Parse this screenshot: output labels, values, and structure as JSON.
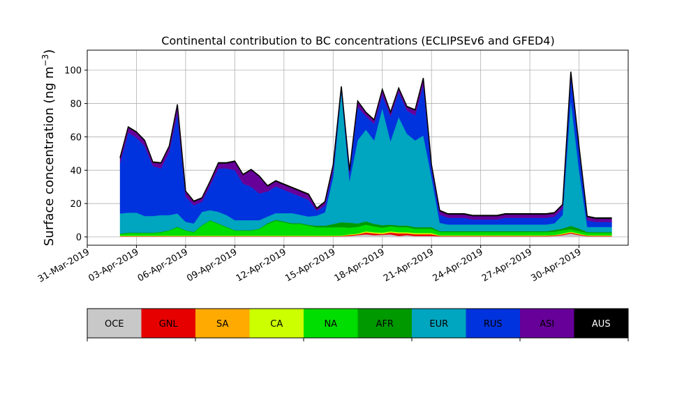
{
  "chart_data": {
    "type": "area",
    "stacked": true,
    "title": "Continental contribution to BC concentrations (ECLIPSEv6 and GFED4)",
    "ylabel_main": "Surface concentration (ng m",
    "ylabel_sup": "−3",
    "ylabel_close": ")",
    "xlabel": "",
    "xlim": [
      "2019-03-31",
      "2019-05-03"
    ],
    "ylim": [
      -5,
      112
    ],
    "grid": true,
    "x_ticks": [
      "31-Mar-2019",
      "03-Apr-2019",
      "06-Apr-2019",
      "09-Apr-2019",
      "12-Apr-2019",
      "15-Apr-2019",
      "18-Apr-2019",
      "21-Apr-2019",
      "24-Apr-2019",
      "27-Apr-2019",
      "30-Apr-2019"
    ],
    "y_ticks": [
      "0",
      "20",
      "40",
      "60",
      "80",
      "100"
    ],
    "y_tick_values": [
      0,
      20,
      40,
      60,
      80,
      100
    ],
    "legend": {
      "placement": "bottom",
      "entries": [
        {
          "name": "OCE",
          "color": "#c8c8c8"
        },
        {
          "name": "GNL",
          "color": "#e60000"
        },
        {
          "name": "SA",
          "color": "#ffaa00"
        },
        {
          "name": "CA",
          "color": "#ccff00"
        },
        {
          "name": "NA",
          "color": "#00dd00"
        },
        {
          "name": "AFR",
          "color": "#009900"
        },
        {
          "name": "EUR",
          "color": "#00a5bf"
        },
        {
          "name": "RUS",
          "color": "#0033dd"
        },
        {
          "name": "ASI",
          "color": "#660099"
        },
        {
          "name": "AUS",
          "color": "#000000"
        }
      ]
    },
    "x": [
      "2019-04-02 00:00",
      "2019-04-02 12:00",
      "2019-04-03 00:00",
      "2019-04-03 12:00",
      "2019-04-04 00:00",
      "2019-04-04 12:00",
      "2019-04-05 00:00",
      "2019-04-05 12:00",
      "2019-04-06 00:00",
      "2019-04-06 12:00",
      "2019-04-07 00:00",
      "2019-04-07 12:00",
      "2019-04-08 00:00",
      "2019-04-08 12:00",
      "2019-04-09 00:00",
      "2019-04-09 12:00",
      "2019-04-10 00:00",
      "2019-04-10 12:00",
      "2019-04-11 00:00",
      "2019-04-11 12:00",
      "2019-04-12 00:00",
      "2019-04-12 12:00",
      "2019-04-13 00:00",
      "2019-04-13 12:00",
      "2019-04-14 00:00",
      "2019-04-14 12:00",
      "2019-04-15 00:00",
      "2019-04-15 12:00",
      "2019-04-16 00:00",
      "2019-04-16 12:00",
      "2019-04-17 00:00",
      "2019-04-17 12:00",
      "2019-04-18 00:00",
      "2019-04-18 12:00",
      "2019-04-19 00:00",
      "2019-04-19 12:00",
      "2019-04-20 00:00",
      "2019-04-20 12:00",
      "2019-04-21 00:00",
      "2019-04-21 12:00",
      "2019-04-22 00:00",
      "2019-04-22 12:00",
      "2019-04-23 00:00",
      "2019-04-23 12:00",
      "2019-04-24 00:00",
      "2019-04-24 12:00",
      "2019-04-25 00:00",
      "2019-04-25 12:00",
      "2019-04-26 00:00",
      "2019-04-26 12:00",
      "2019-04-27 00:00",
      "2019-04-27 12:00",
      "2019-04-28 00:00",
      "2019-04-28 12:00",
      "2019-04-29 00:00",
      "2019-04-29 12:00",
      "2019-04-30 00:00",
      "2019-04-30 12:00",
      "2019-05-01 00:00",
      "2019-05-01 12:00",
      "2019-05-02 00:00"
    ],
    "series": [
      {
        "name": "OCE",
        "values": [
          0.2,
          0.2,
          0.2,
          0.2,
          0.2,
          0.2,
          0.2,
          0.2,
          0.2,
          0.2,
          0.2,
          0.2,
          0.2,
          0.2,
          0.2,
          0.2,
          0.2,
          0.2,
          0.2,
          0.2,
          0.2,
          0.2,
          0.2,
          0.2,
          0.2,
          0.2,
          0.2,
          0.3,
          0.5,
          1.0,
          1.5,
          1.0,
          1.2,
          1.5,
          0.5,
          1.0,
          0.5,
          0.5,
          0.5,
          0.3,
          0.3,
          0.3,
          0.3,
          0.3,
          0.3,
          0.3,
          0.3,
          0.3,
          0.3,
          0.3,
          0.3,
          0.3,
          0.3,
          0.5,
          1.0,
          2.0,
          1.0,
          0.3,
          0.3,
          0.3,
          0.3
        ]
      },
      {
        "name": "GNL",
        "values": [
          0.2,
          0.2,
          0.2,
          0.2,
          0.2,
          0.2,
          0.2,
          0.2,
          0.2,
          0.2,
          0.2,
          0.2,
          0.2,
          0.2,
          0.2,
          0.2,
          0.2,
          0.2,
          0.2,
          0.2,
          0.2,
          0.2,
          0.2,
          0.2,
          0.2,
          0.2,
          0.2,
          0.2,
          0.5,
          0.5,
          1.0,
          1.0,
          0.5,
          1.0,
          1.5,
          1.0,
          1.0,
          1.0,
          1.0,
          0.3,
          0.3,
          0.3,
          0.3,
          0.3,
          0.3,
          0.3,
          0.3,
          0.3,
          0.3,
          0.3,
          0.3,
          0.3,
          0.3,
          0.3,
          0.5,
          0.5,
          0.5,
          0.3,
          0.3,
          0.3,
          0.3
        ]
      },
      {
        "name": "SA",
        "values": [
          0.1,
          0.1,
          0.1,
          0.1,
          0.1,
          0.1,
          0.1,
          0.1,
          0.1,
          0.1,
          0.1,
          0.1,
          0.1,
          0.1,
          0.1,
          0.1,
          0.1,
          0.1,
          0.1,
          0.1,
          0.1,
          0.1,
          0.1,
          0.1,
          0.1,
          0.1,
          0.1,
          0.1,
          0.2,
          0.2,
          0.3,
          0.3,
          0.3,
          0.3,
          0.3,
          0.3,
          0.3,
          0.3,
          0.3,
          0.1,
          0.1,
          0.1,
          0.1,
          0.1,
          0.1,
          0.1,
          0.1,
          0.1,
          0.1,
          0.1,
          0.1,
          0.1,
          0.1,
          0.1,
          0.2,
          0.3,
          0.2,
          0.1,
          0.1,
          0.1,
          0.1
        ]
      },
      {
        "name": "CA",
        "values": [
          0.2,
          0.2,
          0.2,
          0.2,
          0.2,
          0.2,
          0.2,
          0.2,
          0.2,
          0.2,
          0.2,
          0.2,
          0.2,
          0.2,
          0.2,
          0.2,
          0.2,
          0.2,
          0.2,
          0.2,
          0.2,
          0.2,
          0.2,
          0.2,
          0.2,
          0.2,
          0.2,
          0.2,
          0.3,
          0.3,
          0.5,
          0.5,
          0.5,
          0.5,
          0.5,
          0.5,
          0.5,
          0.5,
          0.5,
          0.2,
          0.2,
          0.2,
          0.2,
          0.2,
          0.2,
          0.2,
          0.2,
          0.2,
          0.2,
          0.2,
          0.2,
          0.2,
          0.2,
          0.2,
          0.3,
          0.3,
          0.3,
          0.2,
          0.2,
          0.2,
          0.2
        ]
      },
      {
        "name": "NA",
        "values": [
          1,
          1.5,
          1.5,
          1.5,
          1.5,
          2,
          3,
          5,
          3,
          2,
          6,
          9,
          7,
          5,
          3,
          3,
          3,
          4,
          7,
          9,
          8,
          7,
          7,
          6,
          5,
          5,
          5,
          5,
          4,
          4,
          4,
          3.5,
          3,
          3,
          3,
          3,
          2.5,
          2.5,
          2.5,
          2,
          2,
          2,
          2,
          2,
          2,
          2,
          2,
          2,
          2,
          2,
          2,
          2,
          2,
          2,
          2,
          1.5,
          1.5,
          1.5,
          1.5,
          1.5,
          1.5
        ]
      },
      {
        "name": "AFR",
        "values": [
          0.3,
          0.3,
          0.3,
          0.3,
          0.3,
          0.3,
          0.3,
          0.3,
          0.3,
          0.3,
          0.3,
          0.3,
          0.3,
          0.3,
          0.3,
          0.3,
          0.3,
          0.3,
          0.5,
          0.5,
          0.5,
          0.5,
          0.5,
          0.5,
          1,
          1,
          2,
          3,
          3,
          2,
          2,
          1.5,
          1.5,
          1,
          1,
          1,
          1,
          1,
          1,
          0.5,
          0.5,
          0.5,
          0.5,
          0.5,
          0.5,
          0.5,
          0.5,
          0.5,
          0.5,
          0.5,
          0.5,
          0.5,
          0.5,
          1,
          1,
          2,
          1.5,
          0.5,
          0.5,
          0.5,
          0.5
        ]
      },
      {
        "name": "EUR",
        "values": [
          12,
          12,
          12,
          10,
          10,
          10,
          9,
          8,
          5,
          5,
          8,
          6,
          7,
          7,
          6,
          6,
          6,
          5,
          4,
          4,
          5,
          6,
          5,
          5,
          6,
          8,
          28,
          78,
          25,
          50,
          55,
          50,
          70,
          50,
          65,
          55,
          52,
          55,
          30,
          5,
          4,
          4,
          4,
          4,
          4,
          4,
          4,
          4,
          4,
          4,
          4,
          4,
          4,
          4,
          8,
          75,
          35,
          3,
          3,
          3,
          3
        ]
      },
      {
        "name": "RUS",
        "values": [
          30,
          48,
          45,
          42,
          30,
          28,
          38,
          60,
          15,
          11,
          6,
          15,
          26,
          28,
          30,
          22,
          20,
          16,
          15,
          16,
          14,
          12,
          11,
          10,
          3,
          4,
          4,
          2,
          4,
          20,
          8,
          10,
          8,
          15,
          15,
          14,
          15,
          30,
          5,
          5,
          4,
          4,
          4,
          3,
          3,
          3,
          3,
          4,
          4,
          4,
          4,
          4,
          4,
          4,
          4,
          14,
          12,
          4,
          3,
          3,
          3
        ]
      },
      {
        "name": "ASI",
        "values": [
          3,
          3,
          3,
          3,
          2,
          3,
          3,
          5,
          3,
          2,
          2,
          2,
          3,
          3,
          5,
          5,
          10,
          10,
          3,
          3,
          3,
          3,
          3,
          3,
          1,
          2,
          3,
          1,
          2,
          3,
          2,
          2,
          3,
          2,
          2,
          2,
          3,
          4,
          2,
          2,
          2,
          2,
          2,
          2,
          2,
          2,
          2,
          2,
          2,
          2,
          2,
          2,
          2,
          2,
          2,
          3,
          2,
          2,
          2,
          2,
          2
        ]
      },
      {
        "name": "AUS",
        "values": [
          0.5,
          0.5,
          0.5,
          0.5,
          0.5,
          0.5,
          0.5,
          0.5,
          0.5,
          0.5,
          0.5,
          0.5,
          0.5,
          0.5,
          0.5,
          0.5,
          0.5,
          0.5,
          0.5,
          0.5,
          0.5,
          0.5,
          0.5,
          0.5,
          0.5,
          0.5,
          0.5,
          0.5,
          0.5,
          0.5,
          0.5,
          0.5,
          0.5,
          0.5,
          0.5,
          0.5,
          0.5,
          0.5,
          0.5,
          0.5,
          0.5,
          0.5,
          0.5,
          0.5,
          0.5,
          0.5,
          0.5,
          0.5,
          0.5,
          0.5,
          0.5,
          0.5,
          0.5,
          0.5,
          0.5,
          0.5,
          0.5,
          0.5,
          0.5,
          0.5,
          0.5
        ]
      }
    ]
  }
}
